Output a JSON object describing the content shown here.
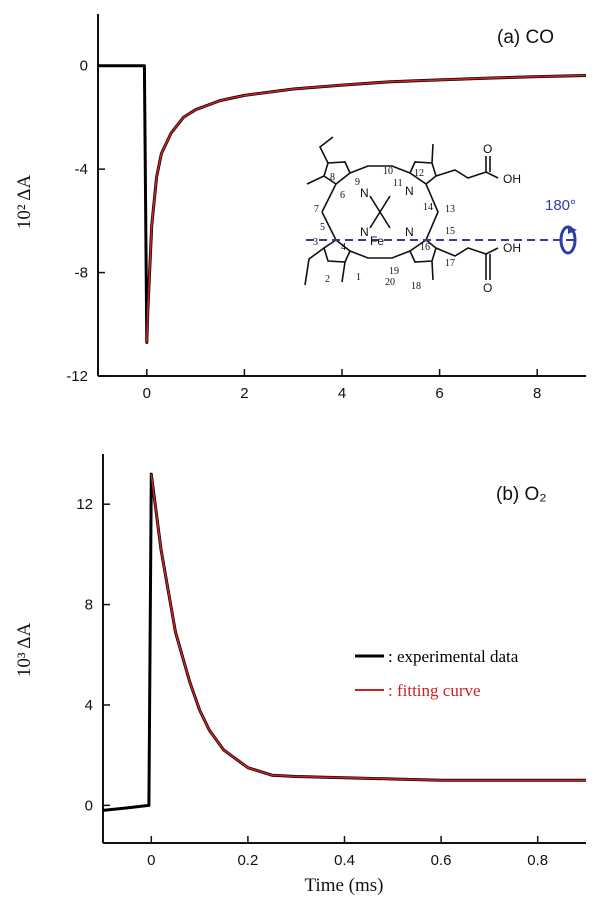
{
  "figure": {
    "xlabel": "Time (ms)",
    "legend": {
      "experimental": ": experimental data",
      "fitting": ": fitting curve"
    },
    "colors": {
      "experimental": "#000000",
      "fitting": "#cc2222",
      "rotation_axis": "#2e3ea8"
    }
  },
  "chart_data": [
    {
      "type": "line",
      "panel_label": "(a) CO",
      "ylabel": "10² ΔA",
      "xlim": [
        -1,
        9
      ],
      "ylim": [
        -12,
        2
      ],
      "x_ticks": [
        0,
        2,
        4,
        6,
        8
      ],
      "y_ticks": [
        0,
        -4,
        -8,
        -12
      ],
      "series": [
        {
          "name": ": experimental data",
          "x": [
            -1.0,
            -0.5,
            -0.05,
            0.0,
            0.02,
            0.1,
            0.2,
            0.3,
            0.5,
            0.75,
            1.0,
            1.5,
            2.0,
            3.0,
            4.0,
            5.0,
            6.0,
            7.0,
            8.0,
            9.0
          ],
          "y": [
            0.0,
            0.0,
            0.0,
            -10.7,
            -9.5,
            -6.2,
            -4.3,
            -3.4,
            -2.6,
            -2.0,
            -1.7,
            -1.35,
            -1.15,
            -0.9,
            -0.75,
            -0.62,
            -0.55,
            -0.48,
            -0.42,
            -0.38
          ]
        },
        {
          "name": ": fitting curve",
          "x": [
            0.0,
            0.02,
            0.1,
            0.2,
            0.3,
            0.5,
            0.75,
            1.0,
            1.5,
            2.0,
            3.0,
            4.0,
            5.0,
            6.0,
            7.0,
            8.0,
            9.0
          ],
          "y": [
            -10.7,
            -9.5,
            -6.2,
            -4.3,
            -3.4,
            -2.6,
            -2.0,
            -1.7,
            -1.35,
            -1.15,
            -0.9,
            -0.75,
            -0.62,
            -0.55,
            -0.48,
            -0.42,
            -0.38
          ]
        }
      ],
      "inset": {
        "metal": "Fe",
        "nitrogen": "N",
        "acid_groups": [
          "OH",
          "O",
          "OH",
          "O"
        ],
        "position_numbers": [
          "1",
          "2",
          "3",
          "4",
          "5",
          "6",
          "7",
          "8",
          "9",
          "10",
          "11",
          "12",
          "13",
          "14",
          "15",
          "16",
          "17",
          "18",
          "19",
          "20"
        ],
        "rotation": "180°"
      }
    },
    {
      "type": "line",
      "panel_label": "(b) O₂",
      "ylabel": "10³ ΔA",
      "xlim": [
        -0.1,
        0.9
      ],
      "ylim": [
        -1.5,
        14
      ],
      "x_ticks": [
        0,
        0.2,
        0.4,
        0.6,
        0.8
      ],
      "y_ticks": [
        0,
        4,
        8,
        12
      ],
      "series": [
        {
          "name": ": experimental data",
          "x": [
            -0.1,
            -0.05,
            -0.005,
            0.0,
            0.02,
            0.05,
            0.08,
            0.1,
            0.12,
            0.15,
            0.2,
            0.25,
            0.3,
            0.4,
            0.5,
            0.6,
            0.7,
            0.8,
            0.9
          ],
          "y": [
            -0.2,
            -0.1,
            0.0,
            13.2,
            10.2,
            6.9,
            4.9,
            3.8,
            3.0,
            2.2,
            1.5,
            1.2,
            1.15,
            1.1,
            1.05,
            1.0,
            1.0,
            1.0,
            1.0
          ]
        },
        {
          "name": ": fitting curve",
          "x": [
            0.0,
            0.02,
            0.05,
            0.08,
            0.1,
            0.12,
            0.15,
            0.2,
            0.25,
            0.3,
            0.4,
            0.5,
            0.6,
            0.7,
            0.8,
            0.9
          ],
          "y": [
            13.2,
            10.2,
            6.9,
            4.9,
            3.8,
            3.0,
            2.2,
            1.5,
            1.2,
            1.15,
            1.1,
            1.05,
            1.0,
            1.0,
            1.0,
            1.0
          ]
        }
      ]
    }
  ]
}
